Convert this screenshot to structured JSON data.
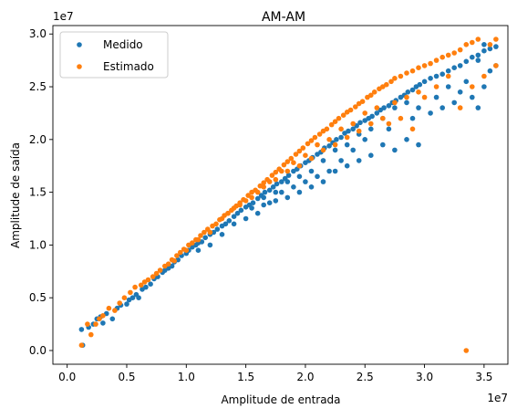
{
  "chart_data": {
    "type": "scatter",
    "title": "AM-AM",
    "xlabel": "Amplitude de entrada",
    "ylabel": "Amplitude de saída",
    "x_offset_label": "1e7",
    "y_offset_label": "1e7",
    "xlim": [
      -0.12,
      3.7
    ],
    "ylim": [
      -0.13,
      3.08
    ],
    "x_ticks": [
      0.0,
      0.5,
      1.0,
      1.5,
      2.0,
      2.5,
      3.0,
      3.5
    ],
    "x_tick_labels": [
      "0.0",
      "0.5",
      "1.0",
      "1.5",
      "2.0",
      "2.5",
      "3.0",
      "3.5"
    ],
    "y_ticks": [
      0.0,
      0.5,
      1.0,
      1.5,
      2.0,
      2.5,
      3.0
    ],
    "y_tick_labels": [
      "0.0",
      "0.5",
      "1.0",
      "1.5",
      "2.0",
      "2.5",
      "3.0"
    ],
    "grid": false,
    "legend_position": "upper-left",
    "series": [
      {
        "name": "Medido",
        "color": "#1f77b4",
        "points": [
          [
            0.12,
            0.2
          ],
          [
            0.13,
            0.05
          ],
          [
            0.18,
            0.22
          ],
          [
            0.22,
            0.25
          ],
          [
            0.25,
            0.3
          ],
          [
            0.28,
            0.32
          ],
          [
            0.3,
            0.26
          ],
          [
            0.33,
            0.35
          ],
          [
            0.38,
            0.3
          ],
          [
            0.42,
            0.4
          ],
          [
            0.45,
            0.43
          ],
          [
            0.5,
            0.44
          ],
          [
            0.52,
            0.48
          ],
          [
            0.55,
            0.5
          ],
          [
            0.58,
            0.53
          ],
          [
            0.6,
            0.5
          ],
          [
            0.63,
            0.58
          ],
          [
            0.66,
            0.6
          ],
          [
            0.7,
            0.63
          ],
          [
            0.73,
            0.68
          ],
          [
            0.76,
            0.7
          ],
          [
            0.8,
            0.74
          ],
          [
            0.82,
            0.76
          ],
          [
            0.85,
            0.78
          ],
          [
            0.88,
            0.8
          ],
          [
            0.9,
            0.84
          ],
          [
            0.93,
            0.86
          ],
          [
            0.96,
            0.9
          ],
          [
            1.0,
            0.92
          ],
          [
            1.02,
            0.95
          ],
          [
            1.05,
            0.98
          ],
          [
            1.08,
            1.0
          ],
          [
            1.1,
            1.02
          ],
          [
            1.13,
            1.03
          ],
          [
            1.16,
            1.07
          ],
          [
            1.2,
            1.1
          ],
          [
            1.23,
            1.12
          ],
          [
            1.26,
            1.15
          ],
          [
            1.3,
            1.18
          ],
          [
            1.33,
            1.2
          ],
          [
            1.36,
            1.23
          ],
          [
            1.4,
            1.27
          ],
          [
            1.43,
            1.3
          ],
          [
            1.46,
            1.33
          ],
          [
            1.5,
            1.36
          ],
          [
            1.53,
            1.38
          ],
          [
            1.56,
            1.4
          ],
          [
            1.6,
            1.44
          ],
          [
            1.63,
            1.47
          ],
          [
            1.66,
            1.5
          ],
          [
            1.7,
            1.52
          ],
          [
            1.73,
            1.55
          ],
          [
            1.76,
            1.58
          ],
          [
            1.8,
            1.6
          ],
          [
            1.83,
            1.63
          ],
          [
            1.86,
            1.66
          ],
          [
            1.9,
            1.7
          ],
          [
            1.93,
            1.72
          ],
          [
            1.96,
            1.75
          ],
          [
            2.0,
            1.78
          ],
          [
            2.03,
            1.8
          ],
          [
            2.06,
            1.83
          ],
          [
            2.1,
            1.86
          ],
          [
            2.13,
            1.88
          ],
          [
            2.16,
            1.92
          ],
          [
            2.2,
            1.94
          ],
          [
            2.23,
            1.97
          ],
          [
            2.26,
            2.0
          ],
          [
            2.3,
            2.02
          ],
          [
            2.33,
            2.06
          ],
          [
            2.36,
            2.08
          ],
          [
            2.4,
            2.1
          ],
          [
            2.43,
            2.13
          ],
          [
            2.46,
            2.16
          ],
          [
            2.5,
            2.18
          ],
          [
            2.53,
            2.2
          ],
          [
            2.56,
            2.22
          ],
          [
            2.6,
            2.25
          ],
          [
            2.63,
            2.28
          ],
          [
            2.66,
            2.3
          ],
          [
            2.7,
            2.32
          ],
          [
            2.73,
            2.35
          ],
          [
            2.76,
            2.37
          ],
          [
            2.8,
            2.4
          ],
          [
            2.83,
            2.42
          ],
          [
            2.86,
            2.45
          ],
          [
            2.9,
            2.47
          ],
          [
            2.93,
            2.5
          ],
          [
            2.96,
            2.52
          ],
          [
            3.0,
            2.55
          ],
          [
            3.05,
            2.58
          ],
          [
            3.1,
            2.6
          ],
          [
            3.15,
            2.62
          ],
          [
            3.2,
            2.65
          ],
          [
            3.25,
            2.68
          ],
          [
            3.3,
            2.7
          ],
          [
            3.35,
            2.74
          ],
          [
            3.4,
            2.78
          ],
          [
            3.45,
            2.8
          ],
          [
            3.5,
            2.84
          ],
          [
            3.55,
            2.86
          ],
          [
            3.6,
            2.88
          ],
          [
            3.4,
            2.4
          ],
          [
            3.45,
            2.3
          ],
          [
            3.5,
            2.5
          ],
          [
            3.2,
            2.5
          ],
          [
            3.1,
            2.4
          ],
          [
            2.9,
            2.2
          ],
          [
            2.7,
            2.1
          ],
          [
            2.5,
            2.0
          ],
          [
            2.4,
            1.9
          ],
          [
            2.3,
            1.8
          ],
          [
            2.2,
            1.7
          ],
          [
            2.1,
            1.65
          ],
          [
            2.0,
            1.6
          ],
          [
            1.9,
            1.55
          ],
          [
            1.8,
            1.5
          ],
          [
            1.7,
            1.4
          ],
          [
            1.6,
            1.3
          ],
          [
            1.5,
            1.25
          ],
          [
            1.4,
            1.2
          ],
          [
            1.3,
            1.1
          ],
          [
            1.2,
            1.0
          ],
          [
            1.1,
            0.95
          ],
          [
            2.95,
            1.95
          ],
          [
            2.85,
            2.0
          ],
          [
            2.75,
            1.9
          ],
          [
            2.65,
            1.95
          ],
          [
            2.55,
            1.85
          ],
          [
            2.45,
            1.8
          ],
          [
            2.35,
            1.75
          ],
          [
            2.25,
            1.7
          ],
          [
            2.15,
            1.6
          ],
          [
            2.05,
            1.55
          ],
          [
            1.95,
            1.5
          ],
          [
            1.85,
            1.45
          ],
          [
            1.75,
            1.42
          ],
          [
            1.65,
            1.38
          ],
          [
            1.55,
            1.35
          ],
          [
            3.6,
            2.7
          ],
          [
            3.55,
            2.65
          ],
          [
            3.5,
            2.9
          ],
          [
            3.45,
            2.75
          ],
          [
            3.35,
            2.55
          ],
          [
            3.3,
            2.45
          ],
          [
            3.25,
            2.35
          ],
          [
            3.15,
            2.3
          ],
          [
            3.05,
            2.25
          ],
          [
            2.95,
            2.3
          ],
          [
            2.85,
            2.35
          ],
          [
            2.75,
            2.3
          ],
          [
            2.65,
            2.2
          ],
          [
            2.55,
            2.1
          ],
          [
            2.45,
            2.05
          ],
          [
            2.35,
            1.95
          ],
          [
            2.25,
            1.9
          ],
          [
            2.15,
            1.8
          ],
          [
            2.05,
            1.7
          ],
          [
            1.95,
            1.65
          ],
          [
            1.85,
            1.6
          ],
          [
            1.75,
            1.5
          ],
          [
            1.65,
            1.45
          ]
        ]
      },
      {
        "name": "Estimado",
        "color": "#ff7f0e",
        "points": [
          [
            0.12,
            0.05
          ],
          [
            0.17,
            0.25
          ],
          [
            0.2,
            0.15
          ],
          [
            0.24,
            0.25
          ],
          [
            0.27,
            0.3
          ],
          [
            0.3,
            0.33
          ],
          [
            0.35,
            0.4
          ],
          [
            0.4,
            0.38
          ],
          [
            0.44,
            0.45
          ],
          [
            0.48,
            0.5
          ],
          [
            0.53,
            0.55
          ],
          [
            0.57,
            0.6
          ],
          [
            0.62,
            0.62
          ],
          [
            0.65,
            0.65
          ],
          [
            0.68,
            0.67
          ],
          [
            0.72,
            0.7
          ],
          [
            0.75,
            0.73
          ],
          [
            0.78,
            0.76
          ],
          [
            0.82,
            0.8
          ],
          [
            0.85,
            0.82
          ],
          [
            0.88,
            0.86
          ],
          [
            0.92,
            0.9
          ],
          [
            0.95,
            0.93
          ],
          [
            0.98,
            0.96
          ],
          [
            1.02,
            1.0
          ],
          [
            1.05,
            1.02
          ],
          [
            1.08,
            1.05
          ],
          [
            1.12,
            1.09
          ],
          [
            1.15,
            1.12
          ],
          [
            1.18,
            1.15
          ],
          [
            1.22,
            1.18
          ],
          [
            1.25,
            1.2
          ],
          [
            1.28,
            1.24
          ],
          [
            1.32,
            1.28
          ],
          [
            1.35,
            1.3
          ],
          [
            1.38,
            1.33
          ],
          [
            1.42,
            1.37
          ],
          [
            1.45,
            1.4
          ],
          [
            1.48,
            1.43
          ],
          [
            1.52,
            1.47
          ],
          [
            1.55,
            1.5
          ],
          [
            1.58,
            1.52
          ],
          [
            1.62,
            1.56
          ],
          [
            1.65,
            1.59
          ],
          [
            1.68,
            1.62
          ],
          [
            1.72,
            1.66
          ],
          [
            1.75,
            1.69
          ],
          [
            1.78,
            1.72
          ],
          [
            1.82,
            1.76
          ],
          [
            1.85,
            1.79
          ],
          [
            1.88,
            1.82
          ],
          [
            1.92,
            1.86
          ],
          [
            1.95,
            1.89
          ],
          [
            1.98,
            1.92
          ],
          [
            2.02,
            1.96
          ],
          [
            2.05,
            1.99
          ],
          [
            2.08,
            2.02
          ],
          [
            2.12,
            2.05
          ],
          [
            2.15,
            2.08
          ],
          [
            2.18,
            2.1
          ],
          [
            2.22,
            2.14
          ],
          [
            2.25,
            2.17
          ],
          [
            2.28,
            2.2
          ],
          [
            2.32,
            2.23
          ],
          [
            2.35,
            2.26
          ],
          [
            2.38,
            2.28
          ],
          [
            2.42,
            2.31
          ],
          [
            2.45,
            2.34
          ],
          [
            2.48,
            2.36
          ],
          [
            2.52,
            2.4
          ],
          [
            2.55,
            2.42
          ],
          [
            2.58,
            2.45
          ],
          [
            2.62,
            2.48
          ],
          [
            2.65,
            2.5
          ],
          [
            2.68,
            2.52
          ],
          [
            2.72,
            2.55
          ],
          [
            2.75,
            2.58
          ],
          [
            2.8,
            2.6
          ],
          [
            2.85,
            2.63
          ],
          [
            2.9,
            2.65
          ],
          [
            2.95,
            2.68
          ],
          [
            3.0,
            2.7
          ],
          [
            3.05,
            2.72
          ],
          [
            3.1,
            2.75
          ],
          [
            3.15,
            2.78
          ],
          [
            3.2,
            2.8
          ],
          [
            3.25,
            2.82
          ],
          [
            3.3,
            2.85
          ],
          [
            3.35,
            2.9
          ],
          [
            3.4,
            2.92
          ],
          [
            3.45,
            2.95
          ],
          [
            3.55,
            2.9
          ],
          [
            3.6,
            2.95
          ],
          [
            3.35,
            0.0
          ],
          [
            2.9,
            2.1
          ],
          [
            2.8,
            2.2
          ],
          [
            2.7,
            2.15
          ],
          [
            2.6,
            2.3
          ],
          [
            2.5,
            2.25
          ],
          [
            2.4,
            2.15
          ],
          [
            2.3,
            2.1
          ],
          [
            2.2,
            2.0
          ],
          [
            2.1,
            1.95
          ],
          [
            2.0,
            1.85
          ],
          [
            1.9,
            1.78
          ],
          [
            1.8,
            1.7
          ],
          [
            1.7,
            1.6
          ],
          [
            1.6,
            1.5
          ],
          [
            1.5,
            1.42
          ],
          [
            1.4,
            1.35
          ],
          [
            1.3,
            1.25
          ],
          [
            1.2,
            1.12
          ],
          [
            1.1,
            1.05
          ],
          [
            1.0,
            0.95
          ],
          [
            0.9,
            0.85
          ],
          [
            3.0,
            2.4
          ],
          [
            3.1,
            2.5
          ],
          [
            3.2,
            2.6
          ],
          [
            3.3,
            2.3
          ],
          [
            3.4,
            2.5
          ],
          [
            3.5,
            2.6
          ],
          [
            3.6,
            2.7
          ],
          [
            2.95,
            2.45
          ],
          [
            2.85,
            2.4
          ],
          [
            2.75,
            2.35
          ],
          [
            2.65,
            2.2
          ],
          [
            2.55,
            2.15
          ],
          [
            2.45,
            2.08
          ],
          [
            2.35,
            2.02
          ],
          [
            2.25,
            1.95
          ],
          [
            2.15,
            1.9
          ],
          [
            2.05,
            1.82
          ],
          [
            1.95,
            1.75
          ],
          [
            1.85,
            1.7
          ],
          [
            1.75,
            1.62
          ],
          [
            1.65,
            1.55
          ],
          [
            1.55,
            1.45
          ],
          [
            1.45,
            1.38
          ],
          [
            1.35,
            1.3
          ]
        ]
      }
    ]
  }
}
